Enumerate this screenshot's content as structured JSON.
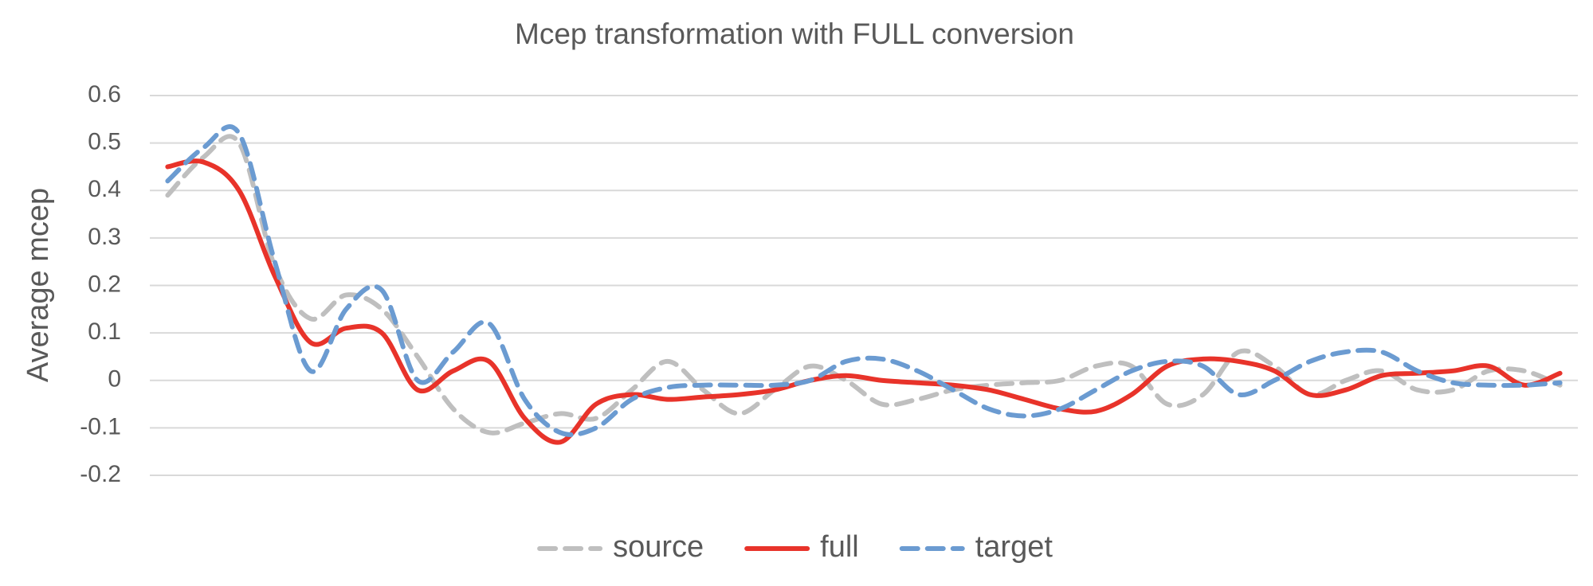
{
  "chart_data": {
    "type": "line",
    "title": "Mcep transformation with FULL conversion",
    "y_label": "Average mcep",
    "categories": [
      null,
      null,
      null,
      null,
      null,
      null,
      null,
      null,
      null,
      null,
      null,
      null,
      null,
      null,
      null,
      null,
      null,
      null,
      null,
      null,
      null,
      null,
      null,
      null,
      null,
      null,
      null,
      null,
      null,
      null,
      null,
      null,
      null,
      null,
      null,
      null,
      null,
      null,
      null,
      null
    ],
    "series": [
      {
        "name": "source",
        "color": "#bfbfbf",
        "dash": true,
        "values": [
          0.39,
          0.47,
          0.5,
          0.24,
          0.13,
          0.18,
          0.15,
          0.05,
          -0.06,
          -0.11,
          -0.09,
          -0.07,
          -0.08,
          -0.02,
          0.04,
          -0.02,
          -0.07,
          -0.02,
          0.03,
          0.0,
          -0.05,
          -0.04,
          -0.02,
          -0.01,
          -0.005,
          0.0,
          0.03,
          0.03,
          -0.05,
          -0.03,
          0.06,
          0.03,
          -0.03,
          0.0,
          0.02,
          -0.02,
          -0.02,
          0.02,
          0.02,
          -0.01
        ]
      },
      {
        "name": "full",
        "color": "#e8332a",
        "dash": false,
        "values": [
          0.45,
          0.46,
          0.4,
          0.22,
          0.08,
          0.11,
          0.1,
          -0.02,
          0.02,
          0.04,
          -0.08,
          -0.13,
          -0.05,
          -0.03,
          -0.04,
          -0.035,
          -0.03,
          -0.02,
          0.0,
          0.01,
          0.0,
          -0.005,
          -0.01,
          -0.02,
          -0.04,
          -0.06,
          -0.065,
          -0.03,
          0.03,
          0.045,
          0.04,
          0.02,
          -0.03,
          -0.02,
          0.01,
          0.015,
          0.02,
          0.03,
          -0.01,
          0.015
        ]
      },
      {
        "name": "target",
        "color": "#6b9bd1",
        "dash": true,
        "values": [
          0.42,
          0.49,
          0.52,
          0.25,
          0.02,
          0.15,
          0.19,
          0.0,
          0.06,
          0.12,
          -0.04,
          -0.11,
          -0.1,
          -0.04,
          -0.015,
          -0.01,
          -0.01,
          -0.01,
          0.0,
          0.04,
          0.045,
          0.02,
          -0.02,
          -0.06,
          -0.075,
          -0.06,
          -0.02,
          0.02,
          0.04,
          0.03,
          -0.03,
          0.0,
          0.04,
          0.06,
          0.06,
          0.02,
          -0.005,
          -0.01,
          -0.01,
          -0.005
        ]
      }
    ],
    "ylim": [
      -0.2,
      0.6
    ],
    "yticks": [
      -0.2,
      -0.1,
      0,
      0.1,
      0.2,
      0.3,
      0.4,
      0.5,
      0.6
    ],
    "grid": true,
    "legend": "bottom"
  }
}
